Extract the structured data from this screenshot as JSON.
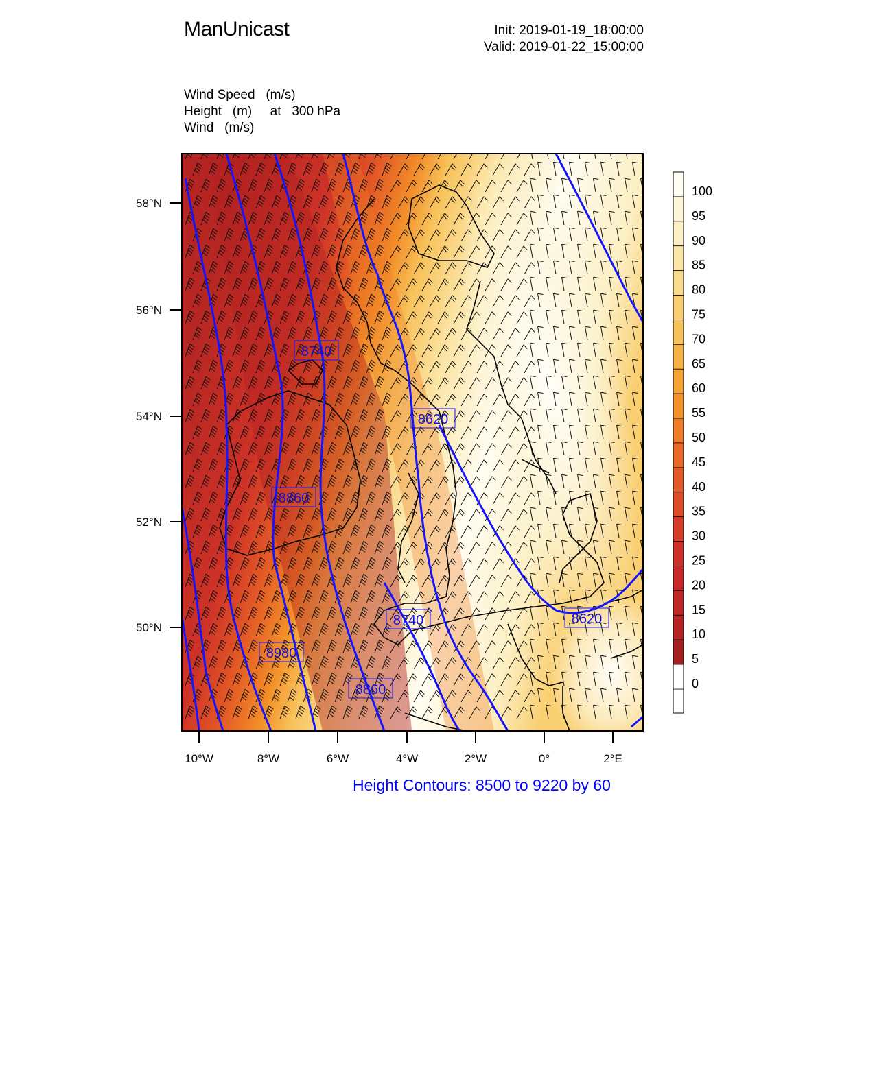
{
  "header": {
    "title": "ManUnicast",
    "init": "Init: 2019-01-19_18:00:00",
    "valid": "Valid: 2019-01-22_15:00:00"
  },
  "fields": {
    "line1": "Wind Speed   (m/s)",
    "line2": "Height   (m)     at   300 hPa",
    "line3": "Wind   (m/s)"
  },
  "map": {
    "lat_labels": [
      "58°N",
      "56°N",
      "54°N",
      "52°N",
      "50°N"
    ],
    "lon_labels": [
      "10°W",
      "8°W",
      "6°W",
      "4°W",
      "2°W",
      "0°",
      "2°E"
    ],
    "contour_color": "#1414ff",
    "contour_labels": [
      "8740",
      "8620",
      "8860",
      "8740",
      "8980",
      "8860",
      "8620"
    ]
  },
  "colorbar": {
    "labels": [
      "100",
      "95",
      "90",
      "85",
      "80",
      "75",
      "70",
      "65",
      "60",
      "55",
      "50",
      "45",
      "40",
      "35",
      "30",
      "25",
      "20",
      "15",
      "10",
      "5",
      "0"
    ],
    "colors": [
      "#fffdf2",
      "#fdf6dc",
      "#fcefc3",
      "#fbe6a8",
      "#fadb8c",
      "#f9cf72",
      "#f8c25a",
      "#f7b344",
      "#f5a233",
      "#f39028",
      "#ef7d25",
      "#ea6a25",
      "#e45a26",
      "#dd4b27",
      "#d63d28",
      "#cf3028",
      "#c92828",
      "#c02626",
      "#b52323",
      "#a51f1f",
      "#ffffff"
    ]
  },
  "footnote": "Height Contours: 8500 to 9220 by 60"
}
